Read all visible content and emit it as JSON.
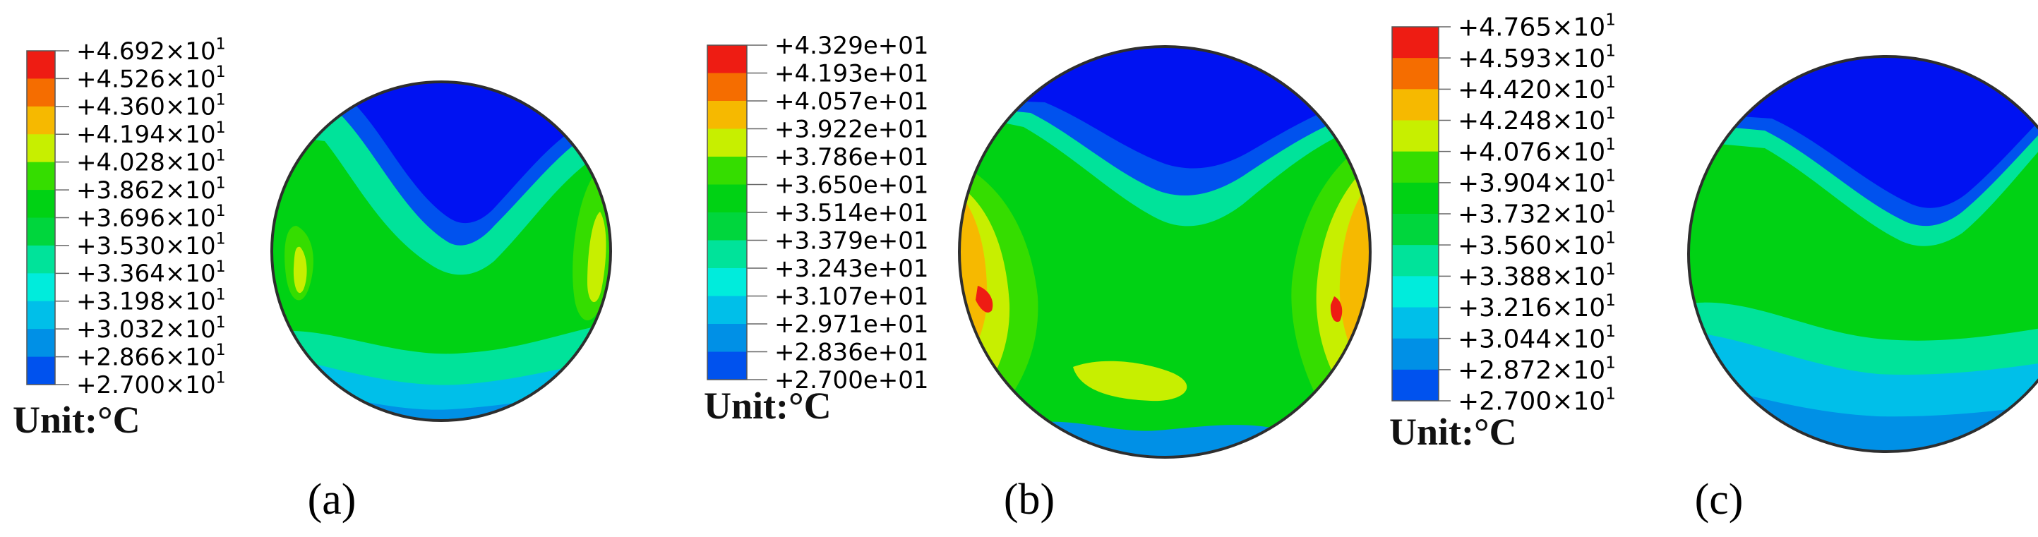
{
  "colors": {
    "levels": [
      "#0012f2",
      "#0052ee",
      "#0090e6",
      "#00bfe9",
      "#00ecdc",
      "#00e39a",
      "#00d63d",
      "#00d214",
      "#35dd00",
      "#c7ef00",
      "#f6b900",
      "#f56d00",
      "#ee1c13"
    ],
    "outline": "#2e2e2e",
    "background": "#ffffff"
  },
  "panels": [
    {
      "caption": "(a)",
      "unit_label": "Unit:°C",
      "legend_values": [
        {
          "mant": "+4.692",
          "exp": "1"
        },
        {
          "mant": "+4.526",
          "exp": "1"
        },
        {
          "mant": "+4.360",
          "exp": "1"
        },
        {
          "mant": "+4.194",
          "exp": "1"
        },
        {
          "mant": "+4.028",
          "exp": "1"
        },
        {
          "mant": "+3.862",
          "exp": "1"
        },
        {
          "mant": "+3.696",
          "exp": "1"
        },
        {
          "mant": "+3.530",
          "exp": "1"
        },
        {
          "mant": "+3.364",
          "exp": "1"
        },
        {
          "mant": "+3.198",
          "exp": "1"
        },
        {
          "mant": "+3.032",
          "exp": "1"
        },
        {
          "mant": "+2.866",
          "exp": "1"
        },
        {
          "mant": "+2.700",
          "exp": "1"
        }
      ]
    },
    {
      "caption": "(b)",
      "unit_label": "Unit:°C",
      "legend_values": [
        {
          "text": "+4.329e+01"
        },
        {
          "text": "+4.193e+01"
        },
        {
          "text": "+4.057e+01"
        },
        {
          "text": "+3.922e+01"
        },
        {
          "text": "+3.786e+01"
        },
        {
          "text": "+3.650e+01"
        },
        {
          "text": "+3.514e+01"
        },
        {
          "text": "+3.379e+01"
        },
        {
          "text": "+3.243e+01"
        },
        {
          "text": "+3.107e+01"
        },
        {
          "text": "+2.971e+01"
        },
        {
          "text": "+2.836e+01"
        },
        {
          "text": "+2.700e+01"
        }
      ]
    },
    {
      "caption": "(c)",
      "unit_label": "Unit:°C",
      "legend_values": [
        {
          "mant": "+4.765",
          "exp": "1"
        },
        {
          "mant": "+4.593",
          "exp": "1"
        },
        {
          "mant": "+4.420",
          "exp": "1"
        },
        {
          "mant": "+4.248",
          "exp": "1"
        },
        {
          "mant": "+4.076",
          "exp": "1"
        },
        {
          "mant": "+3.904",
          "exp": "1"
        },
        {
          "mant": "+3.732",
          "exp": "1"
        },
        {
          "mant": "+3.560",
          "exp": "1"
        },
        {
          "mant": "+3.388",
          "exp": "1"
        },
        {
          "mant": "+3.216",
          "exp": "1"
        },
        {
          "mant": "+3.044",
          "exp": "1"
        },
        {
          "mant": "+2.872",
          "exp": "1"
        },
        {
          "mant": "+2.700",
          "exp": "1"
        }
      ]
    }
  ]
}
